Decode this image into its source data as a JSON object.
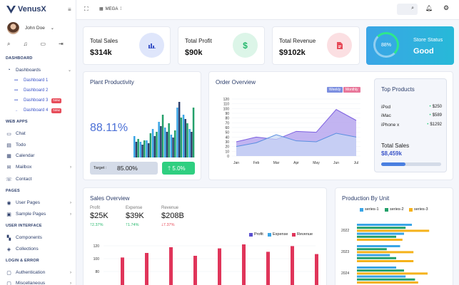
{
  "brand": {
    "name": "VenusX"
  },
  "user": {
    "name": "John Doe"
  },
  "sidebar": {
    "sections": [
      {
        "label": "DASHBOARD",
        "top": 79
      },
      {
        "label": "WEB APPS",
        "top": 168
      },
      {
        "label": "PAGES",
        "top": 265
      },
      {
        "label": "USER INTERFACE",
        "top": 314
      },
      {
        "label": "LOGIN & ERROR",
        "top": 363
      }
    ],
    "items": [
      {
        "label": "Dashboards",
        "icon": "dashboard-icon",
        "glyph": "◔",
        "top": 93,
        "chev": "⌄"
      },
      {
        "label": "Chat",
        "icon": "chat-icon",
        "glyph": "▭",
        "top": 182
      },
      {
        "label": "Todo",
        "icon": "todo-icon",
        "glyph": "▤",
        "top": 198
      },
      {
        "label": "Calendar",
        "icon": "calendar-icon",
        "glyph": "▦",
        "top": 213
      },
      {
        "label": "Mailbox",
        "icon": "mailbox-icon",
        "glyph": "✉",
        "top": 229,
        "chev": "›"
      },
      {
        "label": "Contact",
        "icon": "contact-icon",
        "glyph": "☏",
        "top": 246
      },
      {
        "label": "User Pages",
        "icon": "user-pages-icon",
        "glyph": "◉",
        "top": 279,
        "chev": "›"
      },
      {
        "label": "Sample Pages",
        "icon": "sample-pages-icon",
        "glyph": "▣",
        "top": 295,
        "chev": "›"
      },
      {
        "label": "Components",
        "icon": "components-icon",
        "glyph": "▚",
        "top": 328
      },
      {
        "label": "Collections",
        "icon": "collections-icon",
        "glyph": "◈",
        "top": 344
      },
      {
        "label": "Authentication",
        "icon": "authentication-icon",
        "glyph": "▢",
        "top": 377,
        "chev": "›"
      },
      {
        "label": "Miscellaneous",
        "icon": "miscellaneous-icon",
        "glyph": "▢",
        "top": 392,
        "chev": "›"
      }
    ],
    "subitems": [
      {
        "label": "Dashboard 1",
        "top": 108
      },
      {
        "label": "Dashboard 2",
        "top": 122
      },
      {
        "label": "Dashboard 3",
        "top": 136,
        "badge": "New"
      },
      {
        "label": "Dashboard 4",
        "top": 150,
        "badge": "New",
        "active": true
      }
    ]
  },
  "topbar": {
    "mega_label": "MEGA",
    "search_placeholder": ""
  },
  "stats": [
    {
      "label": "Total Sales",
      "value": "$314k",
      "icon": "bar-chart-icon",
      "glyph": "▮",
      "bg": "#dfe6fb",
      "fg": "#3c55c8"
    },
    {
      "label": "Total Profit",
      "value": "$90k",
      "icon": "dollar-icon",
      "glyph": "$",
      "bg": "#dcf5e8",
      "fg": "#25b86c"
    },
    {
      "label": "Total Revenue",
      "value": "$9102k",
      "icon": "document-icon",
      "glyph": "▘",
      "bg": "#fbdfe2",
      "fg": "#e74c5a"
    }
  ],
  "store": {
    "percent": "88%",
    "title": "Store Status",
    "status": "Good"
  },
  "plant": {
    "title": "Plant Productivity",
    "value": "88.11%",
    "target_label": "Target :",
    "target_value": "85.00%",
    "change": "5.0%",
    "bars": [
      [
        30,
        22,
        26
      ],
      [
        22,
        18,
        24
      ],
      [
        24,
        20,
        34
      ],
      [
        40,
        30,
        36
      ],
      [
        50,
        44,
        60
      ],
      [
        42,
        36,
        48
      ],
      [
        32,
        28,
        38
      ],
      [
        70,
        78,
        56
      ],
      [
        60,
        54,
        48
      ],
      [
        40,
        36,
        70
      ]
    ]
  },
  "order": {
    "title": "Order Overview",
    "btn_weekly": "Weekly",
    "btn_monthly": "Monthly",
    "chart_data": {
      "type": "area",
      "categories": [
        "Jan",
        "Feb",
        "Mar",
        "Apr",
        "May",
        "Jun",
        "Jul"
      ],
      "series": [
        {
          "values": [
            30,
            40,
            35,
            52,
            50,
            98,
            75
          ]
        },
        {
          "values": [
            20,
            28,
            45,
            32,
            30,
            48,
            40
          ]
        }
      ],
      "ylim": [
        0,
        120
      ],
      "yticks": [
        0,
        10,
        20,
        30,
        40,
        50,
        60,
        70,
        80,
        90,
        100,
        110,
        120
      ]
    }
  },
  "top_products": {
    "title": "Top Products",
    "items": [
      {
        "name": "iPod",
        "price": "$250"
      },
      {
        "name": "iMac",
        "price": "$589"
      },
      {
        "name": "iPhone x",
        "price": "$1292"
      }
    ],
    "total_label": "Total Sales",
    "total_value": "$8,459k"
  },
  "sales": {
    "title": "Sales Overview",
    "stats": [
      {
        "label": "Profit",
        "value": "$25K",
        "change": "2.37%",
        "up": true
      },
      {
        "label": "Expense",
        "value": "$39K",
        "change": "1.74%",
        "up": true
      },
      {
        "label": "Revenue",
        "value": "$208B",
        "change": "7.37%",
        "up": false
      }
    ],
    "legend": [
      {
        "name": "Profit",
        "color": "#5a4fcf"
      },
      {
        "name": "Expense",
        "color": "#3aa5e6"
      },
      {
        "name": "Revenue",
        "color": "#e0355a"
      }
    ],
    "chart_data": {
      "type": "bar",
      "yticks": [
        120,
        100,
        80
      ],
      "revenue": [
        72,
        80,
        90,
        75,
        88,
        95,
        82,
        92,
        78
      ]
    }
  },
  "production": {
    "title": "Production By Unit",
    "legend": [
      {
        "name": "series-1",
        "color": "#3aa5e6"
      },
      {
        "name": "series-2",
        "color": "#23a06a"
      },
      {
        "name": "series-3",
        "color": "#f5b21a"
      }
    ],
    "chart_data": {
      "type": "bar",
      "categories": [
        "2022",
        "2023",
        "2024"
      ],
      "series": [
        {
          "name": "series-1",
          "values": [
            [
              70,
              60
            ],
            [
              55,
              42
            ],
            [
              50,
              62
            ]
          ]
        },
        {
          "name": "series-2",
          "values": [
            [
              62,
              50
            ],
            [
              38,
              50
            ],
            [
              60,
              74
            ]
          ]
        },
        {
          "name": "series-3",
          "values": [
            [
              92,
              58
            ],
            [
              72,
              72
            ],
            [
              90,
              78
            ]
          ]
        }
      ]
    }
  }
}
